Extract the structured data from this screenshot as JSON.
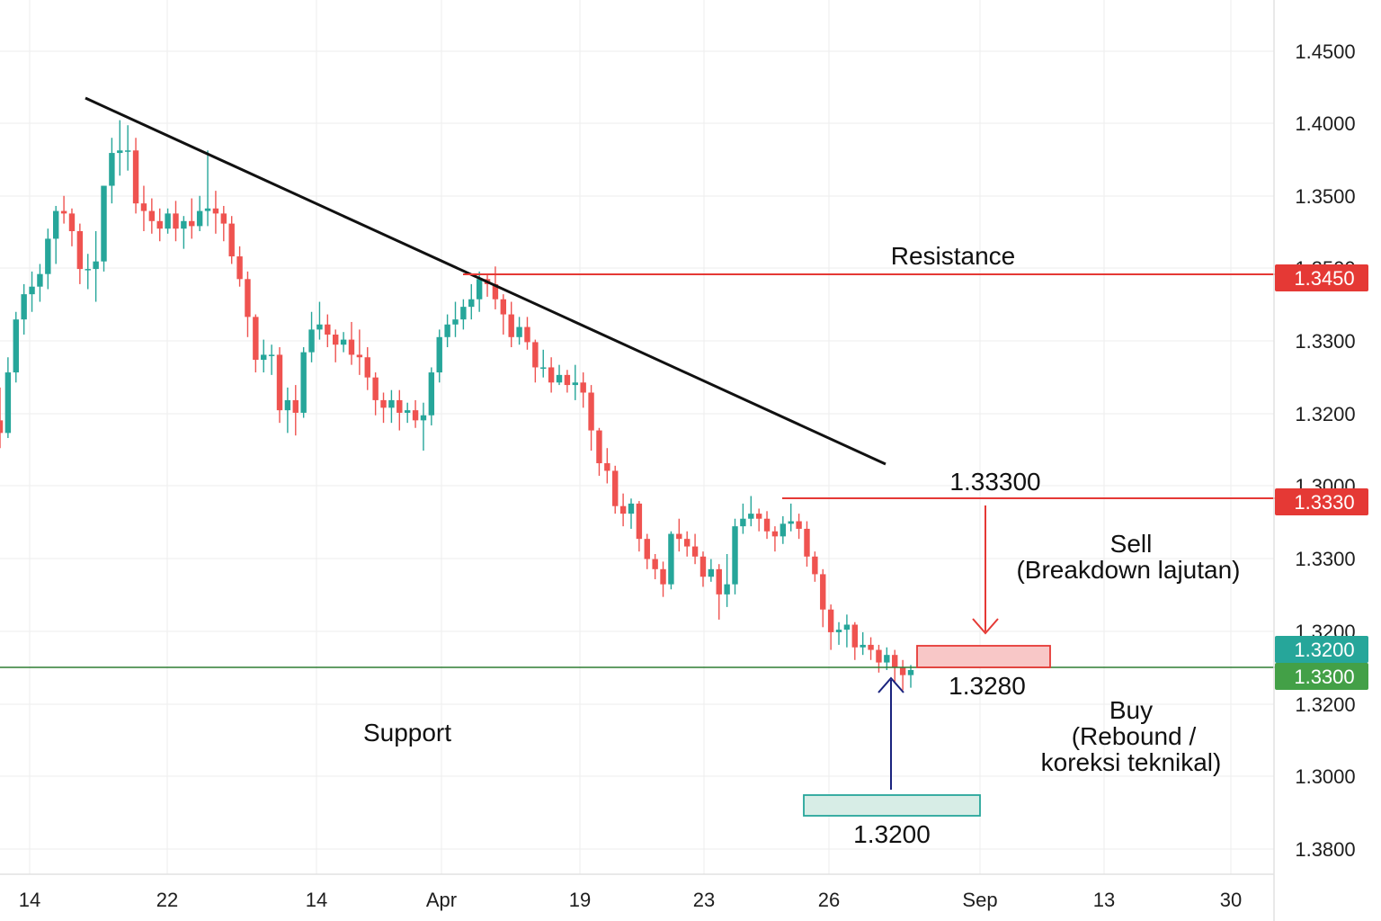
{
  "chart_data": {
    "type": "candlestick",
    "title": "",
    "ylim": [
      1.38,
      1.45
    ],
    "y_axis_ticks": [
      {
        "label": "1.4500"
      },
      {
        "label": "1.4000"
      },
      {
        "label": "1.3500"
      },
      {
        "label": "1.3500"
      },
      {
        "label": "1.3300"
      },
      {
        "label": "1.3200"
      },
      {
        "label": "1.3000"
      },
      {
        "label": "1.3300"
      },
      {
        "label": "1.3200"
      },
      {
        "label": "1.3200"
      },
      {
        "label": "1.3000"
      },
      {
        "label": "1.3800"
      }
    ],
    "x_axis_ticks": [
      "14",
      "22",
      "14",
      "Apr",
      "19",
      "23",
      "26",
      "Sep",
      "13",
      "30"
    ],
    "price_tags": [
      {
        "label": "1.3450",
        "color": "#e53935"
      },
      {
        "label": "1.3330",
        "color": "#e53935"
      },
      {
        "label": "1.3200",
        "color": "#26a69a"
      },
      {
        "label": "1.3300",
        "color": "#43a047"
      }
    ],
    "levels": {
      "resistance": {
        "label": "Resistance",
        "value": 1.345,
        "color": "#e53935"
      },
      "sell_line": {
        "label": "1.33300",
        "value": 1.333,
        "color": "#e53935"
      },
      "support": {
        "label": "Support",
        "value": 1.32,
        "color": "#2e7d32"
      }
    },
    "zones": [
      {
        "name": "sell-target",
        "label": "1.3280",
        "value": 1.328,
        "fill": "#f8c7c7",
        "stroke": "#e53935"
      },
      {
        "name": "buy-target",
        "label": "1.3200",
        "value": 1.32,
        "fill": "#d7ede6",
        "stroke": "#26a69a"
      }
    ],
    "annotations": {
      "sell_title": "Sell",
      "sell_detail": "(Breakdown lajutan)",
      "buy_title": "Buy",
      "buy_detail_1": "(Rebound /",
      "buy_detail_2": "koreksi teknikal)"
    },
    "trendline": {
      "label": "descending-trendline",
      "color": "#111111"
    },
    "colors": {
      "up": "#26a69a",
      "down": "#ef5350",
      "grid": "#eeeeee",
      "sell_arrow": "#e53935",
      "buy_arrow": "#1a237e"
    },
    "candles": [
      [
        1.3198,
        1.3188,
        1.3224,
        1.3176
      ],
      [
        1.3188,
        1.3236,
        1.3248,
        1.3184
      ],
      [
        1.3236,
        1.3278,
        1.3284,
        1.3228
      ],
      [
        1.3278,
        1.3298,
        1.3306,
        1.3266
      ],
      [
        1.3298,
        1.3304,
        1.3316,
        1.3284
      ],
      [
        1.3304,
        1.3314,
        1.3322,
        1.3292
      ],
      [
        1.3314,
        1.3342,
        1.335,
        1.3302
      ],
      [
        1.3342,
        1.3364,
        1.3368,
        1.3322
      ],
      [
        1.3364,
        1.3362,
        1.3376,
        1.3354
      ],
      [
        1.3362,
        1.3348,
        1.3366,
        1.3336
      ],
      [
        1.3348,
        1.3318,
        1.3354,
        1.3306
      ],
      [
        1.3318,
        1.3318,
        1.333,
        1.3302
      ],
      [
        1.3318,
        1.3324,
        1.3348,
        1.3292
      ],
      [
        1.3324,
        1.3384,
        1.3384,
        1.3316
      ],
      [
        1.3384,
        1.341,
        1.3422,
        1.337
      ],
      [
        1.341,
        1.3412,
        1.3436,
        1.3392
      ],
      [
        1.3412,
        1.3412,
        1.3432,
        1.3396
      ],
      [
        1.3412,
        1.337,
        1.3422,
        1.3362
      ],
      [
        1.337,
        1.3364,
        1.3384,
        1.3348
      ],
      [
        1.3364,
        1.3356,
        1.3374,
        1.3346
      ],
      [
        1.3356,
        1.335,
        1.3366,
        1.334
      ],
      [
        1.335,
        1.3362,
        1.3366,
        1.3346
      ],
      [
        1.3362,
        1.335,
        1.3372,
        1.334
      ],
      [
        1.335,
        1.3356,
        1.336,
        1.3334
      ],
      [
        1.3356,
        1.3352,
        1.3374,
        1.3342
      ],
      [
        1.3352,
        1.3364,
        1.3376,
        1.3348
      ],
      [
        1.3364,
        1.3366,
        1.3412,
        1.3352
      ],
      [
        1.3366,
        1.3362,
        1.338,
        1.3346
      ],
      [
        1.3362,
        1.3354,
        1.3368,
        1.334
      ],
      [
        1.3354,
        1.3328,
        1.336,
        1.3322
      ],
      [
        1.3328,
        1.331,
        1.3336,
        1.3304
      ],
      [
        1.331,
        1.328,
        1.3316,
        1.3264
      ],
      [
        1.328,
        1.3246,
        1.3282,
        1.3236
      ],
      [
        1.3246,
        1.325,
        1.3262,
        1.3236
      ],
      [
        1.325,
        1.325,
        1.3258,
        1.3234
      ],
      [
        1.325,
        1.3206,
        1.3256,
        1.3196
      ],
      [
        1.3206,
        1.3214,
        1.3224,
        1.3188
      ],
      [
        1.3214,
        1.3204,
        1.3226,
        1.3186
      ],
      [
        1.3204,
        1.3252,
        1.3256,
        1.32
      ],
      [
        1.3252,
        1.327,
        1.3284,
        1.3244
      ],
      [
        1.327,
        1.3274,
        1.3292,
        1.3262
      ],
      [
        1.3274,
        1.3266,
        1.3282,
        1.3256
      ],
      [
        1.3266,
        1.3258,
        1.327,
        1.3244
      ],
      [
        1.3258,
        1.3262,
        1.3268,
        1.3252
      ],
      [
        1.3262,
        1.325,
        1.3276,
        1.3242
      ],
      [
        1.325,
        1.3248,
        1.327,
        1.3234
      ],
      [
        1.3248,
        1.3232,
        1.3256,
        1.3222
      ],
      [
        1.3232,
        1.3214,
        1.3236,
        1.3202
      ],
      [
        1.3214,
        1.3208,
        1.322,
        1.3196
      ],
      [
        1.3208,
        1.3214,
        1.3222,
        1.3196
      ],
      [
        1.3214,
        1.3204,
        1.3222,
        1.319
      ],
      [
        1.3204,
        1.3206,
        1.3212,
        1.3196
      ],
      [
        1.3206,
        1.3198,
        1.3214,
        1.3192
      ],
      [
        1.3198,
        1.3202,
        1.3212,
        1.3174
      ],
      [
        1.3202,
        1.3236,
        1.324,
        1.3194
      ],
      [
        1.3236,
        1.3264,
        1.327,
        1.3228
      ],
      [
        1.3264,
        1.3274,
        1.3282,
        1.3256
      ],
      [
        1.3274,
        1.3278,
        1.3292,
        1.3264
      ],
      [
        1.3278,
        1.3288,
        1.3294,
        1.327
      ],
      [
        1.3288,
        1.3294,
        1.3306,
        1.3278
      ],
      [
        1.3294,
        1.331,
        1.3316,
        1.3284
      ],
      [
        1.331,
        1.3306,
        1.3314,
        1.3296
      ],
      [
        1.3306,
        1.3294,
        1.332,
        1.3286
      ],
      [
        1.3294,
        1.3282,
        1.3298,
        1.3266
      ],
      [
        1.3282,
        1.3264,
        1.3292,
        1.3256
      ],
      [
        1.3264,
        1.3272,
        1.328,
        1.3258
      ],
      [
        1.3272,
        1.326,
        1.328,
        1.3254
      ],
      [
        1.326,
        1.324,
        1.3262,
        1.3228
      ],
      [
        1.324,
        1.324,
        1.3254,
        1.3232
      ],
      [
        1.324,
        1.3228,
        1.3248,
        1.322
      ],
      [
        1.3228,
        1.3234,
        1.3242,
        1.3226
      ],
      [
        1.3234,
        1.3226,
        1.3238,
        1.322
      ],
      [
        1.3226,
        1.3228,
        1.3242,
        1.3214
      ],
      [
        1.3228,
        1.322,
        1.3236,
        1.3208
      ],
      [
        1.322,
        1.319,
        1.3226,
        1.3174
      ],
      [
        1.319,
        1.3164,
        1.3192,
        1.3154
      ],
      [
        1.3164,
        1.3158,
        1.3176,
        1.3148
      ],
      [
        1.3158,
        1.313,
        1.3162,
        1.3124
      ],
      [
        1.313,
        1.3124,
        1.314,
        1.3114
      ],
      [
        1.3124,
        1.3132,
        1.3136,
        1.3112
      ],
      [
        1.3132,
        1.3104,
        1.3134,
        1.3094
      ],
      [
        1.3104,
        1.3088,
        1.3108,
        1.308
      ],
      [
        1.3088,
        1.308,
        1.3092,
        1.3072
      ],
      [
        1.308,
        1.3068,
        1.3086,
        1.3058
      ],
      [
        1.3068,
        1.3108,
        1.311,
        1.3064
      ],
      [
        1.3108,
        1.3104,
        1.312,
        1.3094
      ],
      [
        1.3104,
        1.3098,
        1.311,
        1.309
      ],
      [
        1.3098,
        1.309,
        1.3108,
        1.3084
      ],
      [
        1.309,
        1.3074,
        1.3094,
        1.3066
      ],
      [
        1.3074,
        1.308,
        1.3088,
        1.307
      ],
      [
        1.308,
        1.306,
        1.3084,
        1.304
      ],
      [
        1.306,
        1.3068,
        1.3092,
        1.305
      ],
      [
        1.3068,
        1.3114,
        1.312,
        1.306
      ],
      [
        1.3114,
        1.312,
        1.3132,
        1.3108
      ],
      [
        1.312,
        1.3124,
        1.3138,
        1.3114
      ],
      [
        1.3124,
        1.312,
        1.3128,
        1.311
      ],
      [
        1.312,
        1.311,
        1.3126,
        1.3104
      ],
      [
        1.311,
        1.3106,
        1.3114,
        1.3094
      ],
      [
        1.3106,
        1.3116,
        1.3122,
        1.31
      ],
      [
        1.3116,
        1.3118,
        1.3132,
        1.311
      ],
      [
        1.3118,
        1.3112,
        1.3124,
        1.3104
      ],
      [
        1.3112,
        1.309,
        1.3118,
        1.3082
      ],
      [
        1.309,
        1.3076,
        1.3094,
        1.307
      ],
      [
        1.3076,
        1.3048,
        1.308,
        1.3034
      ],
      [
        1.3048,
        1.303,
        1.3052,
        1.3016
      ],
      [
        1.303,
        1.3032,
        1.3038,
        1.302
      ],
      [
        1.3032,
        1.3036,
        1.3044,
        1.3018
      ],
      [
        1.3036,
        1.3018,
        1.3038,
        1.3008
      ],
      [
        1.3018,
        1.302,
        1.303,
        1.3012
      ],
      [
        1.302,
        1.3016,
        1.3026,
        1.3008
      ],
      [
        1.3016,
        1.3006,
        1.302,
        1.2998
      ],
      [
        1.3006,
        1.3012,
        1.3018,
        1.3
      ],
      [
        1.3012,
        1.3002,
        1.3016,
        1.299
      ],
      [
        1.3002,
        1.2996,
        1.3008,
        1.2984
      ],
      [
        1.2996,
        1.3,
        1.3004,
        1.2986
      ]
    ]
  }
}
